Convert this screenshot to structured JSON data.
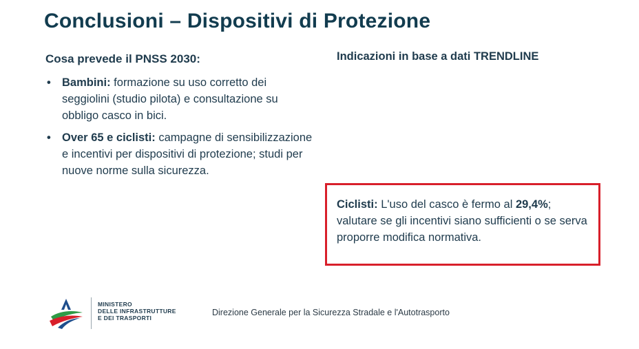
{
  "title": "Conclusioni – Dispositivi di Protezione",
  "left": {
    "heading": "Cosa prevede il PNSS 2030:",
    "bullets": [
      {
        "lead": "Bambini:",
        "text": " formazione su uso corretto dei seggiolini (studio pilota) e consultazione su obbligo casco in bici."
      },
      {
        "lead": "Over 65 e ciclisti:",
        "text": " campagne di sensibilizzazione e incentivi per dispositivi di protezione; studi per nuove norme sulla sicurezza."
      }
    ]
  },
  "right": {
    "heading": "Indicazioni in base a dati TRENDLINE",
    "callout": {
      "lead": "Ciclisti:",
      "text1": " L'uso del casco è fermo al ",
      "value": "29,4%",
      "text2": "; valutare se gli incentivi siano sufficienti o se serva proporre modifica normativa.",
      "border_color": "#d81f2a"
    }
  },
  "footer": {
    "ministry_lines": [
      "MINISTERO",
      "DELLE INFRASTRUTTURE",
      "E DEI TRASPORTI"
    ],
    "direzione": "Direzione Generale per la Sicurezza Stradale e l'Autotrasporto",
    "logo_icon": "star-flag-logo-icon"
  },
  "colors": {
    "title": "#123c4f",
    "text": "#1f3b4d",
    "accent_red": "#d81f2a",
    "logo_green": "#2e9b46",
    "logo_red": "#d81f2a",
    "logo_blue": "#1f4e8c"
  }
}
